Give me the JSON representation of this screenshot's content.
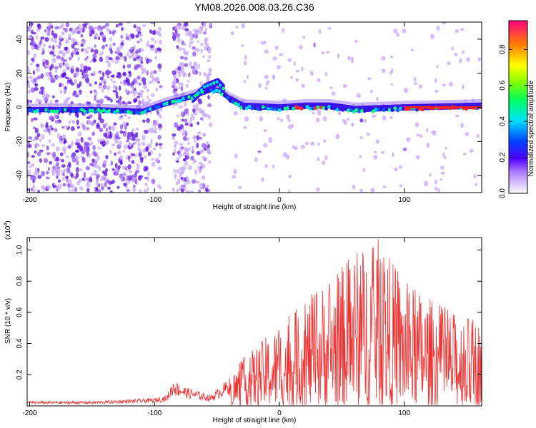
{
  "title": "YM08.2026.008.03.26.C36",
  "chart_data": [
    {
      "type": "heatmap",
      "name": "spectrogram",
      "xlabel": "Height of straight line (km)",
      "ylabel": "Frequency (Hz)",
      "xlim": [
        -202,
        162
      ],
      "ylim": [
        -50,
        50
      ],
      "xticks": [
        -200,
        -100,
        0,
        100
      ],
      "yticks": [
        -40,
        -20,
        0,
        20,
        40
      ],
      "colorbar": {
        "label": "Normalized spectral amplitude",
        "ticks": [
          0.0,
          0.2,
          0.4,
          0.6,
          0.8
        ],
        "range": [
          0,
          0.96
        ]
      },
      "ridge": [
        {
          "x": -200,
          "y": -2
        },
        {
          "x": -150,
          "y": -2
        },
        {
          "x": -110,
          "y": -3
        },
        {
          "x": -90,
          "y": 2
        },
        {
          "x": -70,
          "y": 6
        },
        {
          "x": -55,
          "y": 10
        },
        {
          "x": -48,
          "y": 9
        },
        {
          "x": -40,
          "y": 4
        },
        {
          "x": -30,
          "y": 0
        },
        {
          "x": 0,
          "y": -1
        },
        {
          "x": 20,
          "y": 0
        },
        {
          "x": 40,
          "y": 0
        },
        {
          "x": 60,
          "y": -2
        },
        {
          "x": 100,
          "y": -1
        },
        {
          "x": 162,
          "y": 0
        }
      ],
      "upper_branch": [
        {
          "x": -70,
          "y": 5
        },
        {
          "x": -60,
          "y": 12
        },
        {
          "x": -50,
          "y": 15
        },
        {
          "x": -45,
          "y": 11
        }
      ]
    },
    {
      "type": "line",
      "name": "snr",
      "xlabel": "Height of straight line (km)",
      "ylabel": "SNR (10 * v/v)",
      "y_scale_label": "(x10",
      "y_scale_exp": "4",
      "y_scale_close": ")",
      "xlim": [
        -202,
        162
      ],
      "ylim": [
        0,
        1.08
      ],
      "xticks": [
        -200,
        -100,
        0,
        100
      ],
      "yticks": [
        0.2,
        0.4,
        0.6,
        0.8,
        1.0
      ],
      "color": "#ee3333",
      "envelope": [
        {
          "x": -202,
          "y": 0.03
        },
        {
          "x": -150,
          "y": 0.03
        },
        {
          "x": -100,
          "y": 0.05
        },
        {
          "x": -90,
          "y": 0.07
        },
        {
          "x": -85,
          "y": 0.17
        },
        {
          "x": -75,
          "y": 0.12
        },
        {
          "x": -55,
          "y": 0.07
        },
        {
          "x": -40,
          "y": 0.18
        },
        {
          "x": -30,
          "y": 0.3
        },
        {
          "x": -10,
          "y": 0.45
        },
        {
          "x": 10,
          "y": 0.6
        },
        {
          "x": 30,
          "y": 0.75
        },
        {
          "x": 50,
          "y": 0.9
        },
        {
          "x": 60,
          "y": 1.0
        },
        {
          "x": 80,
          "y": 1.08
        },
        {
          "x": 100,
          "y": 0.8
        },
        {
          "x": 120,
          "y": 0.7
        },
        {
          "x": 140,
          "y": 0.6
        },
        {
          "x": 162,
          "y": 0.55
        }
      ]
    }
  ]
}
